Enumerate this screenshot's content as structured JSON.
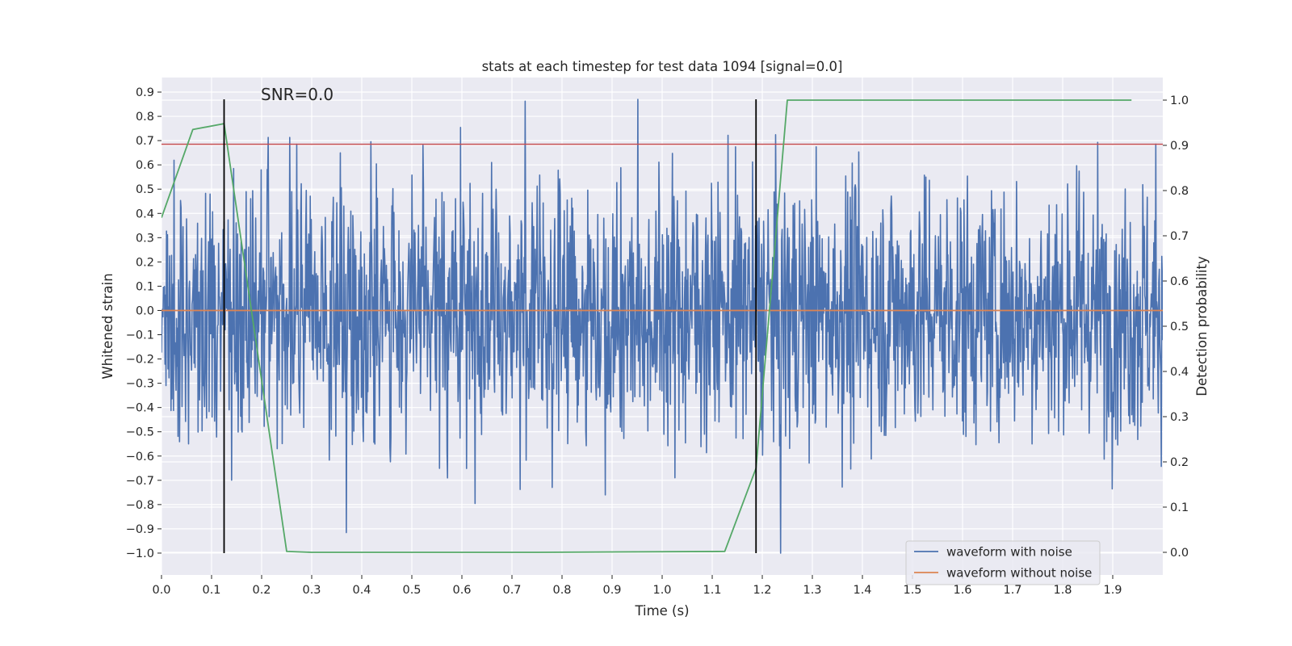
{
  "chart_data": {
    "type": "line",
    "title": "stats at each timestep for test data 1094 [signal=0.0]",
    "annotation": "SNR=0.0",
    "xlabel": "Time (s)",
    "ylabel_left": "Whitened strain",
    "ylabel_right": "Detection probability",
    "xlim": [
      0.0,
      2.0
    ],
    "ylim_left": [
      -1.09,
      0.96
    ],
    "ylim_right": [
      -0.05,
      1.05
    ],
    "x_ticks": [
      "0.0",
      "0.1",
      "0.2",
      "0.3",
      "0.4",
      "0.5",
      "0.6",
      "0.7",
      "0.8",
      "0.9",
      "1.0",
      "1.1",
      "1.2",
      "1.3",
      "1.4",
      "1.5",
      "1.6",
      "1.7",
      "1.8",
      "1.9"
    ],
    "y_left_ticks": [
      "0.9",
      "0.8",
      "0.7",
      "0.6",
      "0.5",
      "0.4",
      "0.3",
      "0.2",
      "0.1",
      "0.0",
      "−0.1",
      "−0.2",
      "−0.3",
      "−0.4",
      "−0.5",
      "−0.6",
      "−0.7",
      "−0.8",
      "−0.9",
      "−1.0"
    ],
    "y_right_ticks": [
      "1.0",
      "0.9",
      "0.8",
      "0.7",
      "0.6",
      "0.5",
      "0.4",
      "0.3",
      "0.2",
      "0.1",
      "0.0"
    ],
    "grid": true,
    "legend_placement": "lower-right",
    "series": [
      {
        "name": "waveform with noise",
        "color": "#4c72b0",
        "axis": "left",
        "kind": "noise",
        "amplitude_range": [
          -1.0,
          0.87
        ]
      },
      {
        "name": "waveform without noise",
        "color": "#dd8452",
        "axis": "left",
        "kind": "line",
        "x": [
          0.0,
          2.0
        ],
        "y": [
          0.0,
          0.0
        ]
      }
    ],
    "detection_probability": {
      "color": "#55a868",
      "axis": "right",
      "x": [
        0.0,
        0.0625,
        0.125,
        0.25,
        0.3,
        0.75,
        1.125,
        1.1875,
        1.25,
        1.9375
      ],
      "y": [
        0.74,
        0.935,
        0.948,
        0.002,
        0.0,
        0.0,
        0.002,
        0.186,
        1.0,
        1.0
      ]
    },
    "threshold_line": {
      "color": "#c44e52",
      "axis": "left",
      "value": 0.685
    },
    "vertical_lines": {
      "color": "#000000",
      "x": [
        0.125,
        1.1875
      ],
      "y_range": [
        -1.0,
        0.87
      ]
    }
  }
}
